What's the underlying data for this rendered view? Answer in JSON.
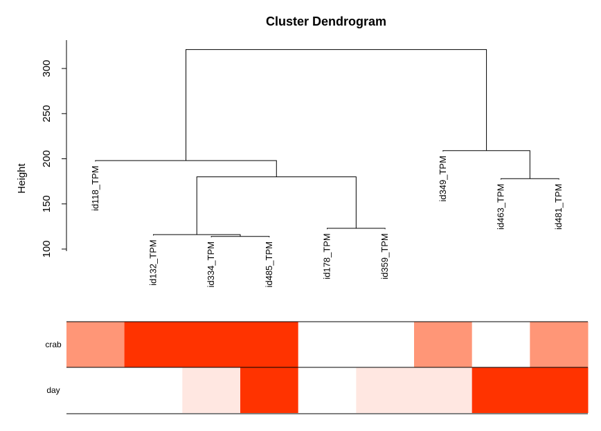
{
  "chart_data": {
    "type": "dendrogram",
    "title": "Cluster Dendrogram",
    "ylabel": "Height",
    "ylim": [
      100,
      330
    ],
    "yticks": [
      100,
      150,
      200,
      250,
      300
    ],
    "leaves": [
      "id118_TPM",
      "id132_TPM",
      "id334_TPM",
      "id485_TPM",
      "id178_TPM",
      "id359_TPM",
      "id349_TPM",
      "id463_TPM",
      "id481_TPM"
    ],
    "merges": [
      {
        "left": "id334_TPM",
        "right": "id485_TPM",
        "height": 114
      },
      {
        "left": "id132_TPM",
        "right": 0,
        "height": 116
      },
      {
        "left": "id178_TPM",
        "right": "id359_TPM",
        "height": 123
      },
      {
        "left": "id463_TPM",
        "right": "id481_TPM",
        "height": 178
      },
      {
        "left": 1,
        "right": 2,
        "height": 180
      },
      {
        "left": "id118_TPM",
        "right": 4,
        "height": 198
      },
      {
        "left": "id349_TPM",
        "right": 3,
        "height": 209
      },
      {
        "left": 5,
        "right": 6,
        "height": 321
      }
    ],
    "leaf_label_heights": {
      "id118_TPM": 197,
      "id132_TPM": 115,
      "id334_TPM": 113,
      "id485_TPM": 113,
      "id178_TPM": 122,
      "id359_TPM": 122,
      "id349_TPM": 208,
      "id463_TPM": 177,
      "id481_TPM": 177
    },
    "color_bars": {
      "rows": [
        "crab",
        "day"
      ],
      "colors": {
        "crab": [
          "#FF9677",
          "#FF3300",
          "#FF3300",
          "#FF3300",
          "#FFFFFF",
          "#FFFFFF",
          "#FF9677",
          "#FFFFFF",
          "#FF9677"
        ],
        "day": [
          "#FFFFFF",
          "#FFFFFF",
          "#FFE7E1",
          "#FF3300",
          "#FFFFFF",
          "#FFE7E1",
          "#FFE7E1",
          "#FF3300",
          "#FF3300"
        ]
      }
    }
  }
}
